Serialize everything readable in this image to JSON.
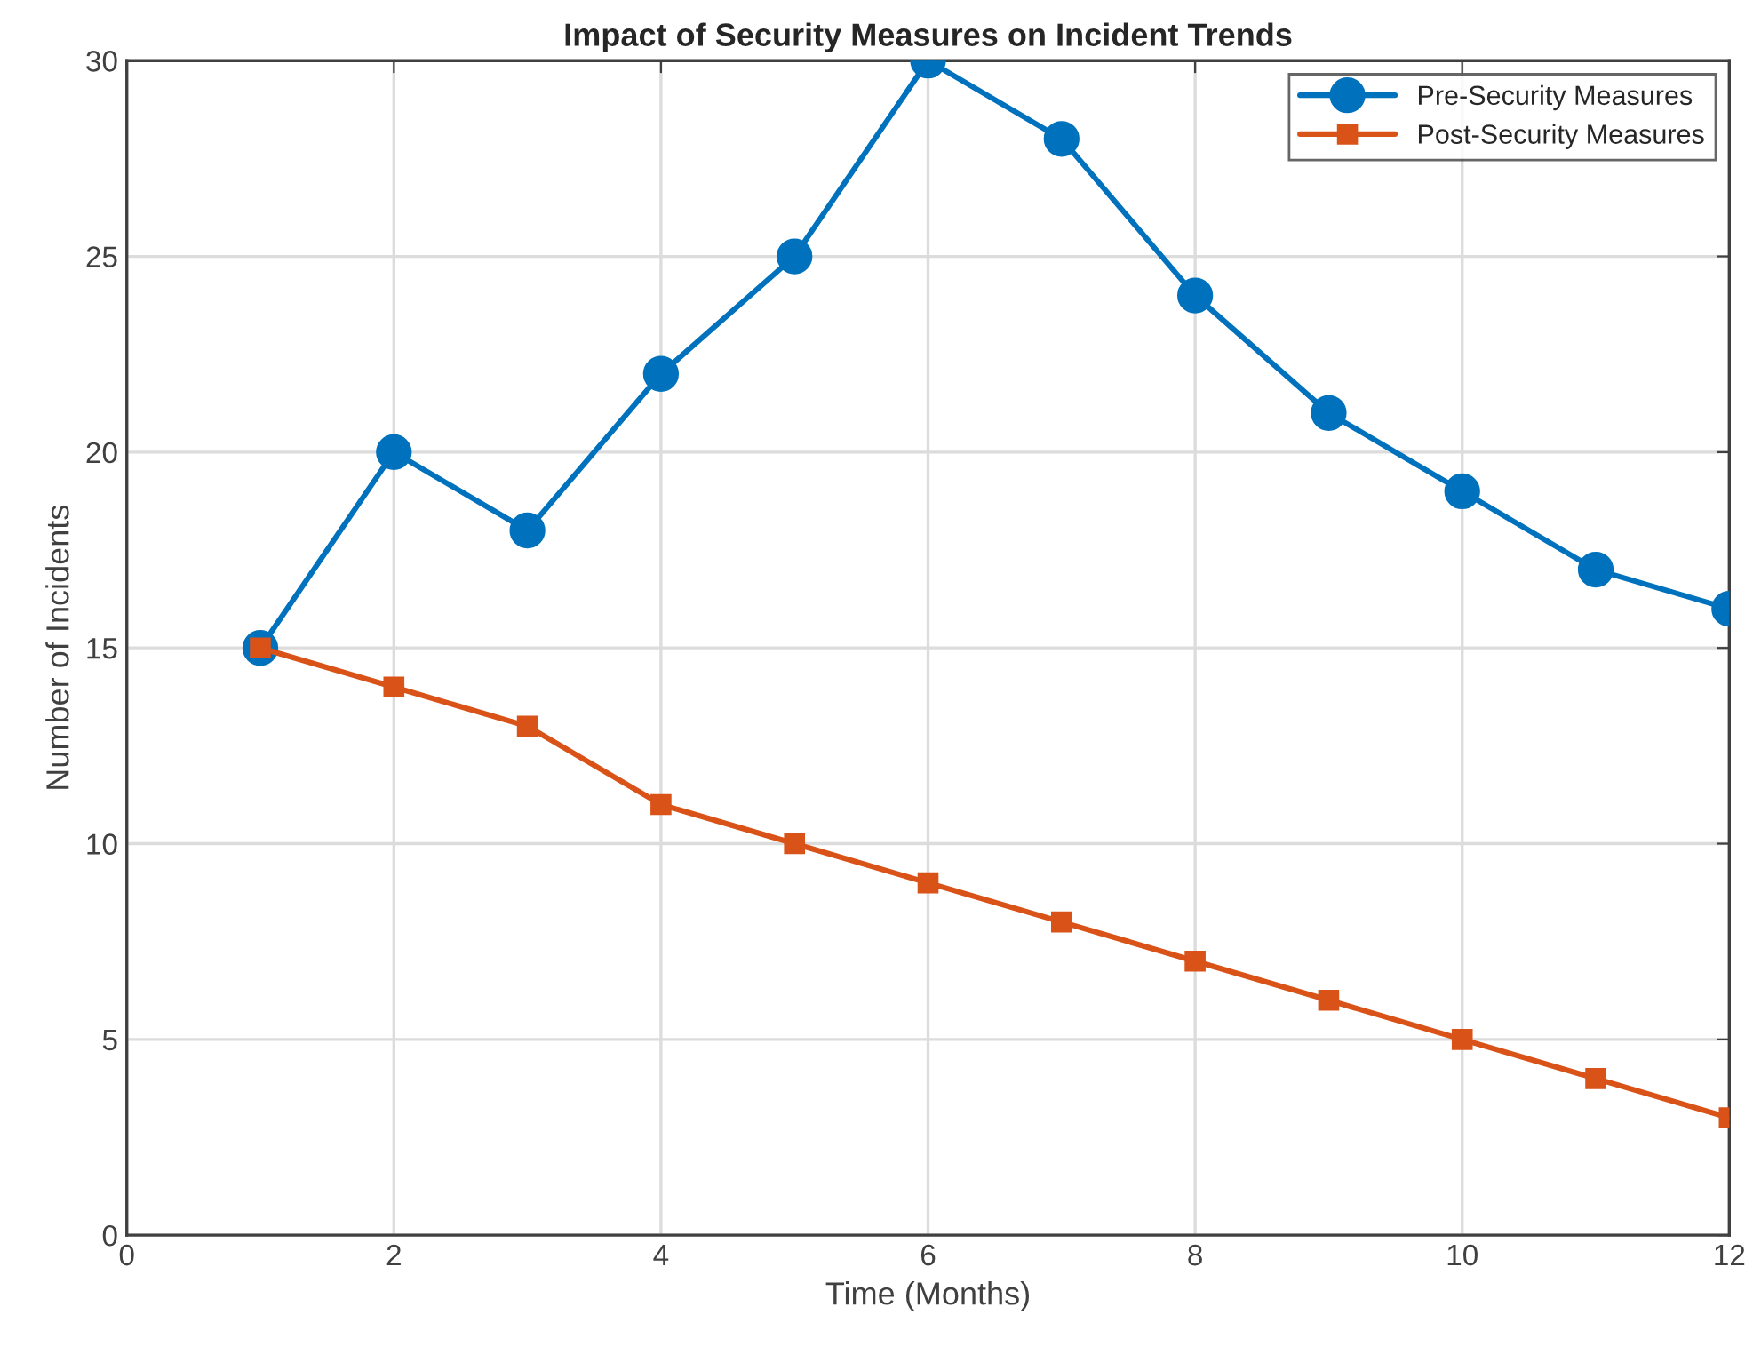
{
  "chart_data": {
    "type": "line",
    "title": "Impact of Security Measures on Incident Trends",
    "xlabel": "Time (Months)",
    "ylabel": "Number of Incidents",
    "x": [
      1,
      2,
      3,
      4,
      5,
      6,
      7,
      8,
      9,
      10,
      11,
      12
    ],
    "series": [
      {
        "name": "Pre-Security Measures",
        "color": "#0072bd",
        "marker": "circle",
        "values": [
          15,
          20,
          18,
          22,
          25,
          30,
          28,
          24,
          21,
          19,
          17,
          16
        ]
      },
      {
        "name": "Post-Security Measures",
        "color": "#d95319",
        "marker": "square",
        "values": [
          15,
          14,
          13,
          11,
          10,
          9,
          8,
          7,
          6,
          5,
          4,
          3
        ]
      }
    ],
    "xlim": [
      0,
      12
    ],
    "xticks": [
      0,
      2,
      4,
      6,
      8,
      10,
      12
    ],
    "ylim": [
      0,
      30
    ],
    "yticks": [
      0,
      5,
      10,
      15,
      20,
      25,
      30
    ],
    "grid": true,
    "legend": "top right",
    "line_style": "solid"
  }
}
